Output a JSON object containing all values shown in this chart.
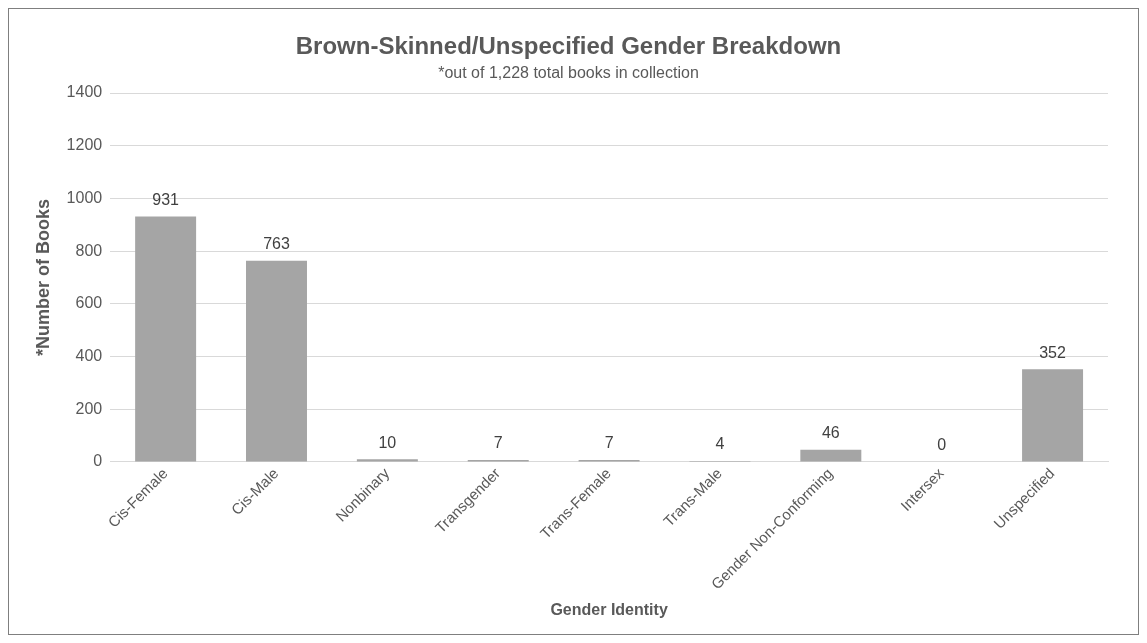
{
  "chart_data": {
    "type": "bar",
    "title": "Brown-Skinned/Unspecified Gender Breakdown",
    "subtitle": "*out of 1,228 total books in collection",
    "xlabel": "Gender Identity",
    "ylabel": "*Number of Books",
    "categories": [
      "Cis-Female",
      "Cis-Male",
      "Nonbinary",
      "Transgender",
      "Trans-Female",
      "Trans-Male",
      "Gender Non-Conforming",
      "Intersex",
      "Unspecified"
    ],
    "values": [
      931,
      763,
      10,
      7,
      7,
      4,
      46,
      0,
      352
    ],
    "color": "#a5a5a5",
    "ylim": [
      0,
      1400
    ],
    "yticks": [
      0,
      200,
      400,
      600,
      800,
      1000,
      1200,
      1400
    ],
    "grid": "y",
    "data_labels": true
  }
}
